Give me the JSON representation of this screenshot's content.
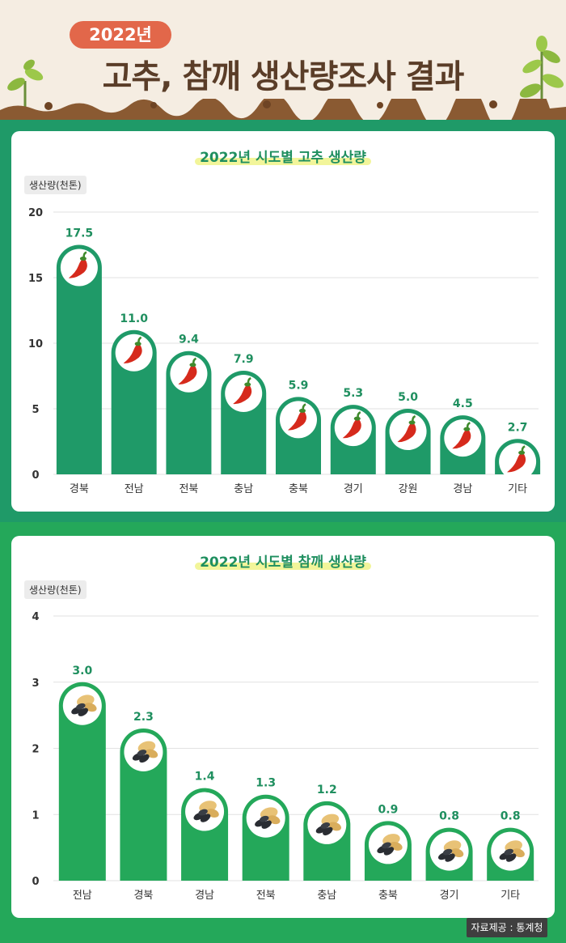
{
  "header": {
    "year_badge": "2022년",
    "title": "고추, 참깨 생산량조사 결과"
  },
  "colors": {
    "background": "#1f9a68",
    "pepper_bar": "#1f9a68",
    "sesame_bar": "#24a85a",
    "label": "#1f8f5f",
    "title_badge": "#e2674a",
    "title_text": "#5a3d28"
  },
  "pepper_chart": {
    "title": "2022년 시도별 고추 생산량",
    "unit_label": "생산량(천톤)",
    "icon": "chili-pepper-icon"
  },
  "sesame_chart": {
    "title": "2022년 시도별 참깨 생산량",
    "unit_label": "생산량(천톤)",
    "icon": "sesame-seeds-icon"
  },
  "source": "자료제공 : 통계청",
  "chart_data": [
    {
      "type": "bar",
      "title": "2022년 시도별 고추 생산량",
      "ylabel": "생산량(천톤)",
      "categories": [
        "경북",
        "전남",
        "전북",
        "충남",
        "충북",
        "경기",
        "강원",
        "경남",
        "기타"
      ],
      "values": [
        17.5,
        11.0,
        9.4,
        7.9,
        5.9,
        5.3,
        5.0,
        4.5,
        2.7
      ],
      "value_labels": [
        "17.5",
        "11.0",
        "9.4",
        "7.9",
        "5.9",
        "5.3",
        "5.0",
        "4.5",
        "2.7"
      ],
      "ylim": [
        0,
        20
      ],
      "yticks": [
        0,
        5,
        10,
        15,
        20
      ],
      "grid": true
    },
    {
      "type": "bar",
      "title": "2022년 시도별 참깨 생산량",
      "ylabel": "생산량(천톤)",
      "categories": [
        "전남",
        "경북",
        "경남",
        "전북",
        "충남",
        "충북",
        "경기",
        "기타"
      ],
      "values": [
        3.0,
        2.3,
        1.4,
        1.3,
        1.2,
        0.9,
        0.8,
        0.8
      ],
      "value_labels": [
        "3.0",
        "2.3",
        "1.4",
        "1.3",
        "1.2",
        "0.9",
        "0.8",
        "0.8"
      ],
      "ylim": [
        0,
        4
      ],
      "yticks": [
        0,
        1,
        2,
        3,
        4
      ],
      "grid": true
    }
  ]
}
